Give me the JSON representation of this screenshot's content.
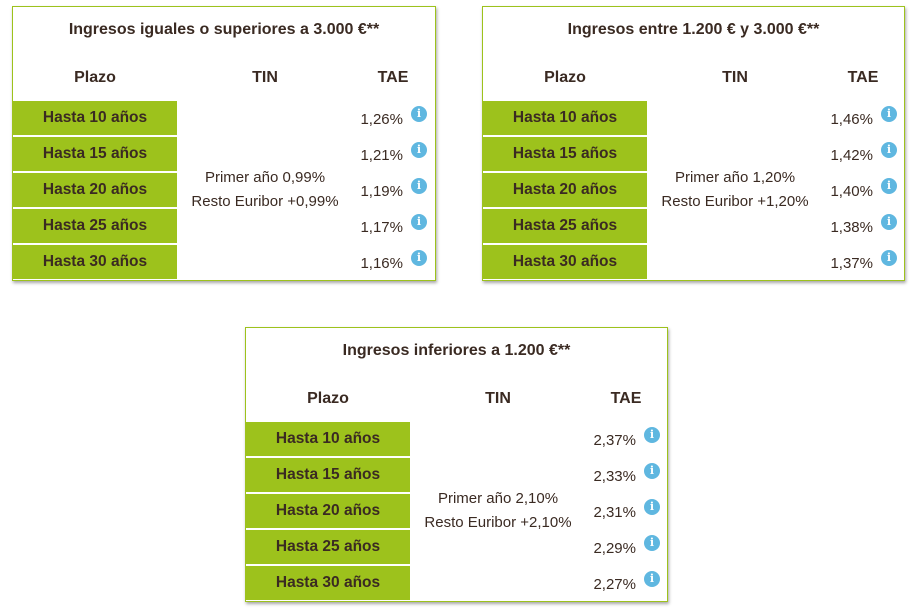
{
  "tables": [
    {
      "title": "Ingresos iguales o superiores a 3.000 €**",
      "headers": {
        "plazo": "Plazo",
        "tin": "TIN",
        "tae": "TAE"
      },
      "rows": [
        "Hasta 10 años",
        "Hasta 15 años",
        "Hasta 20 años",
        "Hasta 25 años",
        "Hasta 30 años"
      ],
      "tin": {
        "line1": "Primer año 0,99%",
        "line2": "Resto Euribor +0,99%"
      },
      "tae": [
        "1,26%",
        "1,21%",
        "1,19%",
        "1,17%",
        "1,16%"
      ]
    },
    {
      "title": "Ingresos entre 1.200 € y 3.000 €**",
      "headers": {
        "plazo": "Plazo",
        "tin": "TIN",
        "tae": "TAE"
      },
      "rows": [
        "Hasta 10 años",
        "Hasta 15 años",
        "Hasta 20 años",
        "Hasta 25 años",
        "Hasta 30 años"
      ],
      "tin": {
        "line1": "Primer año 1,20%",
        "line2": "Resto Euribor +1,20%"
      },
      "tae": [
        "1,46%",
        "1,42%",
        "1,40%",
        "1,38%",
        "1,37%"
      ]
    },
    {
      "title": "Ingresos inferiores a 1.200 €**",
      "headers": {
        "plazo": "Plazo",
        "tin": "TIN",
        "tae": "TAE"
      },
      "rows": [
        "Hasta 10 años",
        "Hasta 15 años",
        "Hasta 20 años",
        "Hasta 25 años",
        "Hasta 30 años"
      ],
      "tin": {
        "line1": "Primer año 2,10%",
        "line2": "Resto Euribor +2,10%"
      },
      "tae": [
        "2,37%",
        "2,33%",
        "2,31%",
        "2,29%",
        "2,27%"
      ]
    }
  ],
  "info_icon": {
    "name": "info-icon",
    "glyph": "i",
    "color": "#5fb7e0"
  },
  "colors": {
    "accent": "#9dc21c",
    "text": "#3a2a22"
  }
}
